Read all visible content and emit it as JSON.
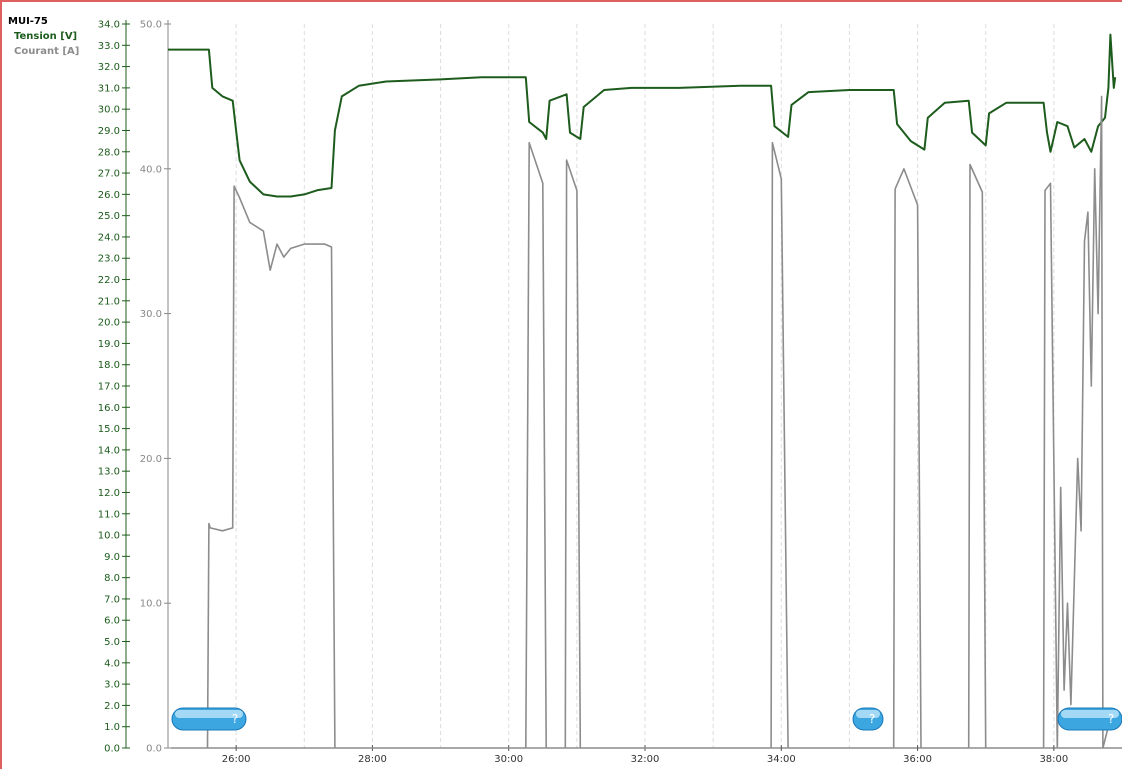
{
  "chart_data": {
    "type": "line",
    "device": "MUI-75",
    "x_ticks": [
      "26:00",
      "28:00",
      "30:00",
      "32:00",
      "34:00",
      "36:00",
      "38:00"
    ],
    "xlim_min": [
      25.0,
      39.0
    ],
    "y_left": {
      "label": "Tension [V]",
      "ylim": [
        0,
        34
      ],
      "step": 1,
      "color": "#1d5c1d"
    },
    "y_right": {
      "label": "Courant [A]",
      "ylim": [
        0,
        50
      ],
      "ticks": [
        "0.0",
        "10.0",
        "20.0",
        "30.0",
        "40.0",
        "50.0"
      ],
      "color": "#888888"
    },
    "grid": "vertical dashed",
    "series": [
      {
        "name": "Tension [V]",
        "color": "#1d5c1d",
        "axis": "left",
        "points": [
          [
            25.0,
            32.8
          ],
          [
            25.6,
            32.8
          ],
          [
            25.65,
            31.0
          ],
          [
            25.8,
            30.6
          ],
          [
            25.95,
            30.4
          ],
          [
            26.0,
            29.0
          ],
          [
            26.05,
            27.6
          ],
          [
            26.2,
            26.6
          ],
          [
            26.4,
            26.0
          ],
          [
            26.6,
            25.9
          ],
          [
            26.8,
            25.9
          ],
          [
            27.0,
            26.0
          ],
          [
            27.2,
            26.2
          ],
          [
            27.4,
            26.3
          ],
          [
            27.45,
            29.0
          ],
          [
            27.55,
            30.6
          ],
          [
            27.8,
            31.1
          ],
          [
            28.2,
            31.3
          ],
          [
            29.0,
            31.4
          ],
          [
            29.6,
            31.5
          ],
          [
            30.25,
            31.5
          ],
          [
            30.3,
            29.4
          ],
          [
            30.5,
            28.9
          ],
          [
            30.55,
            28.6
          ],
          [
            30.6,
            30.4
          ],
          [
            30.85,
            30.7
          ],
          [
            30.9,
            28.9
          ],
          [
            31.05,
            28.6
          ],
          [
            31.1,
            30.1
          ],
          [
            31.4,
            30.9
          ],
          [
            31.8,
            31.0
          ],
          [
            32.5,
            31.0
          ],
          [
            33.4,
            31.1
          ],
          [
            33.85,
            31.1
          ],
          [
            33.9,
            29.2
          ],
          [
            34.1,
            28.7
          ],
          [
            34.15,
            30.2
          ],
          [
            34.4,
            30.8
          ],
          [
            35.0,
            30.9
          ],
          [
            35.65,
            30.9
          ],
          [
            35.7,
            29.3
          ],
          [
            35.9,
            28.5
          ],
          [
            36.1,
            28.1
          ],
          [
            36.15,
            29.6
          ],
          [
            36.4,
            30.3
          ],
          [
            36.75,
            30.4
          ],
          [
            36.8,
            28.9
          ],
          [
            37.0,
            28.3
          ],
          [
            37.05,
            29.8
          ],
          [
            37.3,
            30.3
          ],
          [
            37.85,
            30.3
          ],
          [
            37.9,
            28.9
          ],
          [
            37.95,
            28.0
          ],
          [
            38.05,
            29.4
          ],
          [
            38.2,
            29.2
          ],
          [
            38.3,
            28.2
          ],
          [
            38.45,
            28.6
          ],
          [
            38.55,
            28.0
          ],
          [
            38.65,
            29.2
          ],
          [
            38.75,
            29.6
          ],
          [
            38.8,
            31.0
          ],
          [
            38.83,
            33.5
          ],
          [
            38.88,
            31.0
          ],
          [
            38.9,
            31.5
          ]
        ]
      },
      {
        "name": "Courant [A]",
        "color": "#8c8c8c",
        "axis": "right",
        "points": [
          [
            25.58,
            0
          ],
          [
            25.6,
            15.5
          ],
          [
            25.62,
            15.2
          ],
          [
            25.8,
            15.0
          ],
          [
            25.95,
            15.2
          ],
          [
            25.97,
            38.8
          ],
          [
            26.05,
            38.0
          ],
          [
            26.2,
            36.3
          ],
          [
            26.4,
            35.7
          ],
          [
            26.5,
            33.0
          ],
          [
            26.6,
            34.8
          ],
          [
            26.7,
            33.9
          ],
          [
            26.8,
            34.5
          ],
          [
            27.0,
            34.8
          ],
          [
            27.3,
            34.8
          ],
          [
            27.4,
            34.6
          ],
          [
            27.45,
            0
          ],
          [
            30.25,
            0
          ],
          [
            30.27,
            15.5
          ],
          [
            30.3,
            41.8
          ],
          [
            30.5,
            39.0
          ],
          [
            30.55,
            0
          ],
          [
            30.83,
            0
          ],
          [
            30.85,
            40.6
          ],
          [
            31.0,
            38.5
          ],
          [
            31.05,
            0
          ],
          [
            33.85,
            0
          ],
          [
            33.87,
            41.8
          ],
          [
            34.0,
            39.3
          ],
          [
            34.1,
            0
          ],
          [
            35.65,
            0
          ],
          [
            35.67,
            38.6
          ],
          [
            35.8,
            40.0
          ],
          [
            36.0,
            37.5
          ],
          [
            36.05,
            0
          ],
          [
            36.75,
            0
          ],
          [
            36.77,
            40.3
          ],
          [
            36.95,
            38.4
          ],
          [
            37.0,
            0
          ],
          [
            37.85,
            0
          ],
          [
            37.87,
            38.5
          ],
          [
            37.95,
            39.0
          ],
          [
            38.05,
            0
          ],
          [
            38.1,
            18.0
          ],
          [
            38.15,
            4.0
          ],
          [
            38.2,
            10.0
          ],
          [
            38.25,
            3.0
          ],
          [
            38.35,
            20.0
          ],
          [
            38.4,
            15.0
          ],
          [
            38.45,
            35.0
          ],
          [
            38.5,
            37.0
          ],
          [
            38.55,
            25.0
          ],
          [
            38.6,
            40.0
          ],
          [
            38.65,
            30.0
          ],
          [
            38.7,
            45.0
          ],
          [
            38.72,
            0
          ],
          [
            38.8,
            1.5
          ],
          [
            38.9,
            2.0
          ]
        ]
      }
    ]
  }
}
